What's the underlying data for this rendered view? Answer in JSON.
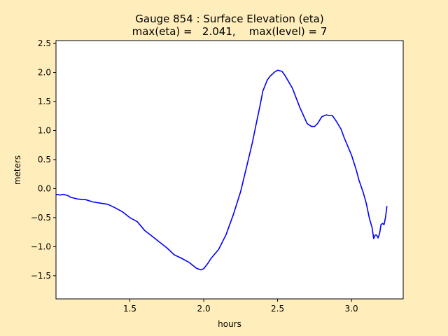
{
  "chart_data": {
    "type": "line",
    "title": "Gauge 854 : Surface Elevation (eta)",
    "subtitle": "max(eta) =   2.041,    max(level) = 7",
    "xlabel": "hours",
    "ylabel": "meters",
    "xlim": [
      1.0,
      3.35
    ],
    "ylim": [
      -1.9,
      2.55
    ],
    "xticks": [
      1.5,
      2.0,
      2.5,
      3.0
    ],
    "yticks": [
      -1.5,
      -1.0,
      -0.5,
      0.0,
      0.5,
      1.0,
      1.5,
      2.0,
      2.5
    ],
    "xtick_labels": [
      "1.5",
      "2.0",
      "2.5",
      "3.0"
    ],
    "ytick_labels": [
      "−1.5",
      "−1.0",
      "−0.5",
      "0.0",
      "0.5",
      "1.0",
      "1.5",
      "2.0",
      "2.5"
    ],
    "grid": false,
    "colors": {
      "line": "#0000ff",
      "plot_bg": "#ffffff",
      "figure_bg": "#ffeebb"
    },
    "series": [
      {
        "x": [
          1.0,
          1.03,
          1.05,
          1.08,
          1.1,
          1.13,
          1.15,
          1.2,
          1.25,
          1.3,
          1.35,
          1.4,
          1.45,
          1.5,
          1.55,
          1.6,
          1.65,
          1.7,
          1.75,
          1.8,
          1.85,
          1.9,
          1.95,
          1.98,
          2.0,
          2.03,
          2.05,
          2.1,
          2.15,
          2.2,
          2.25,
          2.3,
          2.33,
          2.35,
          2.38,
          2.4,
          2.43,
          2.45,
          2.48,
          2.5,
          2.53,
          2.55,
          2.6,
          2.65,
          2.7,
          2.73,
          2.75,
          2.77,
          2.8,
          2.83,
          2.85,
          2.87,
          2.9,
          2.93,
          2.95,
          3.0,
          3.03,
          3.05,
          3.08,
          3.1,
          3.12,
          3.14,
          3.15,
          3.16,
          3.17,
          3.18,
          3.19,
          3.2,
          3.21,
          3.22,
          3.23,
          3.24
        ],
        "y": [
          -0.1,
          -0.11,
          -0.1,
          -0.12,
          -0.15,
          -0.17,
          -0.18,
          -0.19,
          -0.23,
          -0.25,
          -0.27,
          -0.33,
          -0.4,
          -0.5,
          -0.57,
          -0.72,
          -0.82,
          -0.92,
          -1.02,
          -1.14,
          -1.2,
          -1.27,
          -1.37,
          -1.4,
          -1.38,
          -1.28,
          -1.2,
          -1.05,
          -0.8,
          -0.45,
          -0.05,
          0.48,
          0.8,
          1.05,
          1.42,
          1.68,
          1.87,
          1.94,
          2.01,
          2.04,
          2.02,
          1.95,
          1.73,
          1.4,
          1.12,
          1.07,
          1.07,
          1.12,
          1.24,
          1.27,
          1.26,
          1.26,
          1.15,
          1.02,
          0.88,
          0.58,
          0.34,
          0.15,
          -0.07,
          -0.25,
          -0.5,
          -0.68,
          -0.86,
          -0.8,
          -0.8,
          -0.85,
          -0.78,
          -0.62,
          -0.6,
          -0.62,
          -0.5,
          -0.3
        ]
      }
    ]
  }
}
